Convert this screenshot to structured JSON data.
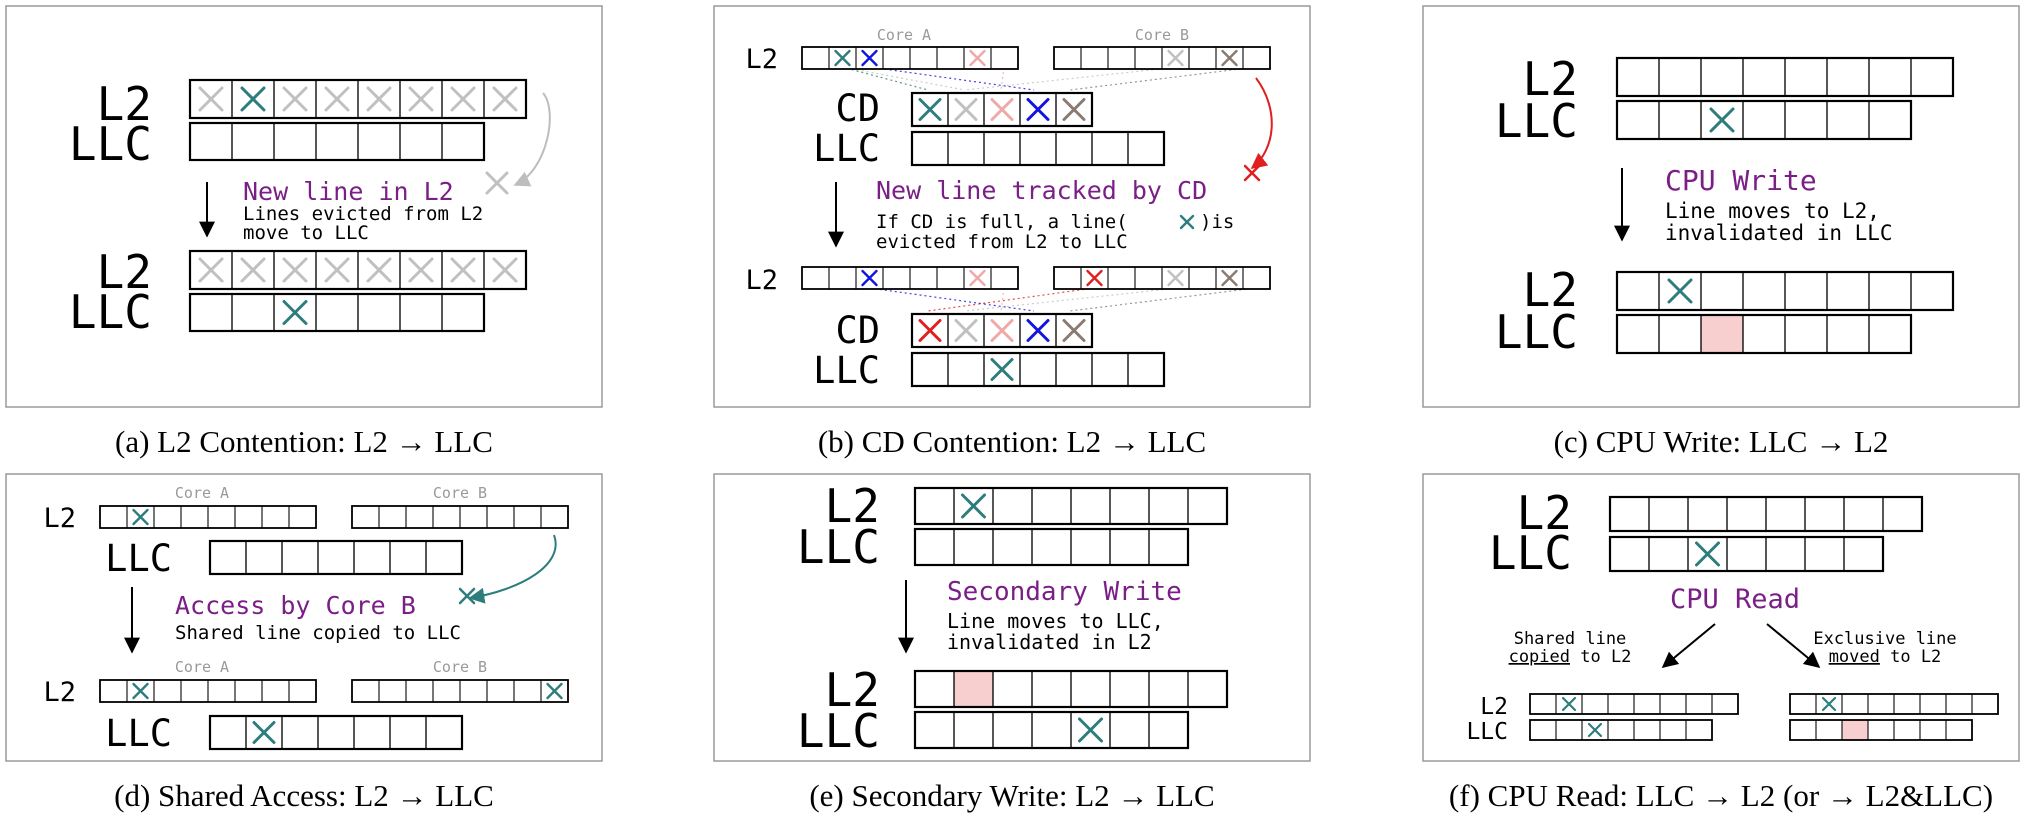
{
  "panels": {
    "a": {
      "caption": "(a) L2 Contention: L2 → LLC",
      "row_l2": "L2",
      "row_llc": "LLC",
      "event_title": "New line in L2",
      "event_desc": [
        "Lines evicted from L2",
        "move to LLC"
      ]
    },
    "b": {
      "caption": "(b) CD Contention: L2 → LLC",
      "row_l2": "L2",
      "row_cd": "CD",
      "row_llc": "LLC",
      "core_a": "Core A",
      "core_b": "Core B",
      "event_title": "New line tracked by CD",
      "event_desc_1a": "If CD is full, a line(",
      "event_desc_1b": ")is",
      "event_desc_2": "evicted from L2 to LLC"
    },
    "c": {
      "caption": "(c) CPU Write: LLC → L2",
      "row_l2": "L2",
      "row_llc": "LLC",
      "event_title": "CPU Write",
      "event_desc": [
        "Line moves to L2,",
        "invalidated in LLC"
      ]
    },
    "d": {
      "caption": "(d) Shared Access: L2 → LLC",
      "row_l2": "L2",
      "row_llc": "LLC",
      "core_a": "Core A",
      "core_b": "Core B",
      "event_title": "Access by Core B",
      "event_desc": "Shared line copied to LLC"
    },
    "e": {
      "caption": "(e) Secondary Write: L2 → LLC",
      "row_l2": "L2",
      "row_llc": "LLC",
      "event_title": "Secondary Write",
      "event_desc": [
        "Line moves to LLC,",
        "invalidated in L2"
      ]
    },
    "f": {
      "caption": "(f) CPU Read: LLC → L2 (or → L2&LLC)",
      "row_l2": "L2",
      "row_llc": "LLC",
      "event_title": "CPU Read",
      "shared_1": "Shared line",
      "shared_2a": "copied",
      "shared_2b": " to L2",
      "excl_1": "Exclusive line",
      "excl_2a": "moved",
      "excl_2b": " to L2"
    }
  },
  "colors": {
    "teal": "#2e7d7d",
    "blue": "#1414e0",
    "red": "#e02020",
    "pink_light": "#f0a8a8",
    "gray_light": "#c0c0c0",
    "gray_mark": "#8a7a70",
    "purple": "#7a1f86",
    "invalid_fill": "#f7cfcf",
    "arrow_gray": "#bdbdbd",
    "arrow_red": "#e02020",
    "arrow_teal": "#2e7d7d"
  }
}
